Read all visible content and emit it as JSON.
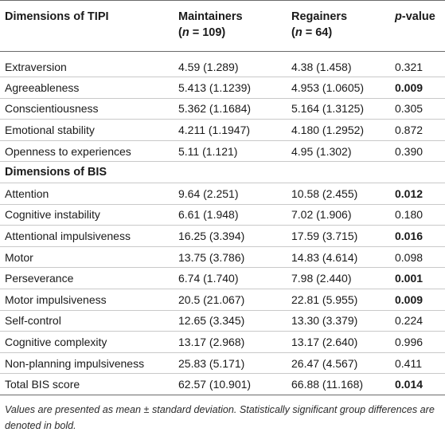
{
  "header": {
    "col1": "Dimensions of TIPI",
    "col2_line1": "Maintainers",
    "col2_n_prefix": "(",
    "col2_n": "n",
    "col2_n_suffix": " = 109)",
    "col3_line1": "Regainers",
    "col3_n_prefix": "(",
    "col3_n": "n",
    "col3_n_suffix": " = 64)",
    "col4_italic": "p",
    "col4_rest": "-value"
  },
  "tipi_rows": [
    {
      "label": "Extraversion",
      "maintainers": "4.59 (1.289)",
      "regainers": "4.38 (1.458)",
      "p": "0.321",
      "bold": false
    },
    {
      "label": "Agreeableness",
      "maintainers": "5.413 (1.1239)",
      "regainers": "4.953 (1.0605)",
      "p": "0.009",
      "bold": true
    },
    {
      "label": "Conscientiousness",
      "maintainers": "5.362 (1.1684)",
      "regainers": "5.164 (1.3125)",
      "p": "0.305",
      "bold": false
    },
    {
      "label": "Emotional stability",
      "maintainers": "4.211 (1.1947)",
      "regainers": "4.180 (1.2952)",
      "p": "0.872",
      "bold": false
    },
    {
      "label": "Openness to experiences",
      "maintainers": "5.11 (1.121)",
      "regainers": "4.95 (1.302)",
      "p": "0.390",
      "bold": false
    }
  ],
  "bis_heading": "Dimensions of BIS",
  "bis_rows": [
    {
      "label": "Attention",
      "maintainers": "9.64 (2.251)",
      "regainers": "10.58 (2.455)",
      "p": "0.012",
      "bold": true
    },
    {
      "label": "Cognitive instability",
      "maintainers": "6.61 (1.948)",
      "regainers": "7.02 (1.906)",
      "p": "0.180",
      "bold": false
    },
    {
      "label": "Attentional impulsiveness",
      "maintainers": "16.25 (3.394)",
      "regainers": "17.59 (3.715)",
      "p": "0.016",
      "bold": true
    },
    {
      "label": "Motor",
      "maintainers": "13.75 (3.786)",
      "regainers": "14.83 (4.614)",
      "p": "0.098",
      "bold": false
    },
    {
      "label": "Perseverance",
      "maintainers": "6.74 (1.740)",
      "regainers": "7.98 (2.440)",
      "p": "0.001",
      "bold": true
    },
    {
      "label": "Motor impulsiveness",
      "maintainers": "20.5 (21.067)",
      "regainers": "22.81 (5.955)",
      "p": "0.009",
      "bold": true
    },
    {
      "label": "Self-control",
      "maintainers": "12.65 (3.345)",
      "regainers": "13.30 (3.379)",
      "p": "0.224",
      "bold": false
    },
    {
      "label": "Cognitive complexity",
      "maintainers": "13.17 (2.968)",
      "regainers": "13.17 (2.640)",
      "p": "0.996",
      "bold": false
    },
    {
      "label": "Non-planning impulsiveness",
      "maintainers": "25.83 (5.171)",
      "regainers": "26.47 (4.567)",
      "p": "0.411",
      "bold": false
    },
    {
      "label": "Total BIS score",
      "maintainers": "62.57 (10.901)",
      "regainers": "66.88 (11.168)",
      "p": "0.014",
      "bold": true
    }
  ],
  "footnote": "Values are presented as mean ± standard deviation. Statistically significant group differences are denoted in bold."
}
